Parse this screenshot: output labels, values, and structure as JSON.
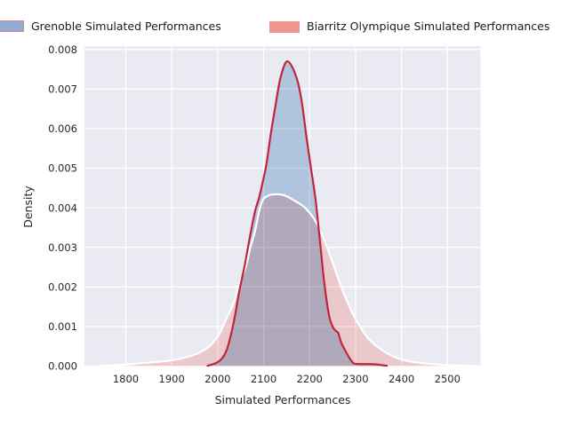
{
  "figure": {
    "background": "#ffffff"
  },
  "legend": {
    "items": [
      {
        "id": "grenoble",
        "label": "Grenoble Simulated Performances",
        "fill": "#8FACD4",
        "border": "#DE8289"
      },
      {
        "id": "biarritz",
        "label": "Biarritz Olympique Simulated Performances",
        "fill": "#F0968F",
        "border": "#F0968F"
      }
    ]
  },
  "chart_data": {
    "type": "area",
    "title": "",
    "xlabel": "Simulated Performances",
    "ylabel": "Density",
    "xlim": [
      1710,
      2572
    ],
    "ylim": [
      0,
      0.008083
    ],
    "grid": true,
    "plot_background": "#EAEAF2",
    "grid_color": "#FFFFFF",
    "xticks": [
      1800,
      1900,
      2000,
      2100,
      2200,
      2300,
      2400,
      2500
    ],
    "yticks": [
      0,
      0.001,
      0.002,
      0.003,
      0.004,
      0.005,
      0.006,
      0.007,
      0.008
    ],
    "ytick_labels": [
      "0.000",
      "0.001",
      "0.002",
      "0.003",
      "0.004",
      "0.005",
      "0.006",
      "0.007",
      "0.008"
    ],
    "series": [
      {
        "id": "biarritz",
        "name": "Biarritz Olympique Simulated Performances",
        "kind": "kde-density",
        "fill": "#FFDBD8",
        "fill_blend": "multiply",
        "line": "#FFFFFF",
        "line_width": 2.2,
        "peak": {
          "x": 2128,
          "density": 0.00434
        },
        "points": [
          [
            1745,
            0
          ],
          [
            1772,
            2e-05
          ],
          [
            1802,
            4e-05
          ],
          [
            1842,
            8e-05
          ],
          [
            1882,
            0.00012
          ],
          [
            1912,
            0.00017
          ],
          [
            1936,
            0.00024
          ],
          [
            1956,
            0.00032
          ],
          [
            1976,
            0.00045
          ],
          [
            1990,
            0.0006
          ],
          [
            2003,
            0.0008
          ],
          [
            2019,
            0.0012
          ],
          [
            2035,
            0.0016
          ],
          [
            2048,
            0.0021
          ],
          [
            2061,
            0.0025
          ],
          [
            2071,
            0.003
          ],
          [
            2081,
            0.0034
          ],
          [
            2090,
            0.0039
          ],
          [
            2098,
            0.0042
          ],
          [
            2106,
            0.00428
          ],
          [
            2116,
            0.00433
          ],
          [
            2128,
            0.00434
          ],
          [
            2140,
            0.00433
          ],
          [
            2152,
            0.00428
          ],
          [
            2164,
            0.0042
          ],
          [
            2176,
            0.00412
          ],
          [
            2188,
            0.00402
          ],
          [
            2198,
            0.0039
          ],
          [
            2208,
            0.00375
          ],
          [
            2218,
            0.00355
          ],
          [
            2228,
            0.0033
          ],
          [
            2238,
            0.003
          ],
          [
            2250,
            0.00262
          ],
          [
            2262,
            0.00222
          ],
          [
            2274,
            0.00185
          ],
          [
            2286,
            0.00152
          ],
          [
            2298,
            0.00123
          ],
          [
            2312,
            0.00096
          ],
          [
            2326,
            0.00072
          ],
          [
            2340,
            0.00056
          ],
          [
            2356,
            0.00042
          ],
          [
            2374,
            0.00029
          ],
          [
            2392,
            0.0002
          ],
          [
            2412,
            0.00013
          ],
          [
            2434,
            9e-05
          ],
          [
            2458,
            6e-05
          ],
          [
            2484,
            4e-05
          ],
          [
            2512,
            2e-05
          ],
          [
            2540,
            1e-05
          ],
          [
            2562,
            0
          ]
        ]
      },
      {
        "id": "grenoble",
        "name": "Grenoble Simulated Performances",
        "kind": "kde-density",
        "fill": "#C0D7E9",
        "fill_blend": "multiply",
        "line": "#C2243B",
        "line_width": 2.2,
        "peak": {
          "x": 2152,
          "density": 0.0077
        },
        "points": [
          [
            1978,
            0
          ],
          [
            1990,
            5e-05
          ],
          [
            2000,
            0.0001
          ],
          [
            2010,
            0.0002
          ],
          [
            2020,
            0.00042
          ],
          [
            2029,
            0.0008
          ],
          [
            2038,
            0.0013
          ],
          [
            2047,
            0.0019
          ],
          [
            2058,
            0.0025
          ],
          [
            2069,
            0.0032
          ],
          [
            2081,
            0.0039
          ],
          [
            2090,
            0.00425
          ],
          [
            2098,
            0.00465
          ],
          [
            2106,
            0.0051
          ],
          [
            2116,
            0.0059
          ],
          [
            2126,
            0.0066
          ],
          [
            2135,
            0.0072
          ],
          [
            2145,
            0.0076
          ],
          [
            2152,
            0.0077
          ],
          [
            2160,
            0.0076
          ],
          [
            2168,
            0.0074
          ],
          [
            2176,
            0.0071
          ],
          [
            2184,
            0.0066
          ],
          [
            2193,
            0.0058
          ],
          [
            2203,
            0.005
          ],
          [
            2213,
            0.0042
          ],
          [
            2223,
            0.0031
          ],
          [
            2232,
            0.0021
          ],
          [
            2242,
            0.0013
          ],
          [
            2250,
            0.001
          ],
          [
            2256,
            0.0009
          ],
          [
            2262,
            0.00084
          ],
          [
            2268,
            0.00062
          ],
          [
            2274,
            0.00047
          ],
          [
            2281,
            0.00032
          ],
          [
            2287,
            0.0002
          ],
          [
            2293,
            0.0001
          ],
          [
            2298,
            6e-05
          ],
          [
            2312,
            5e-05
          ],
          [
            2330,
            5e-05
          ],
          [
            2348,
            4e-05
          ],
          [
            2360,
            2e-05
          ],
          [
            2368,
            0
          ]
        ]
      }
    ]
  }
}
